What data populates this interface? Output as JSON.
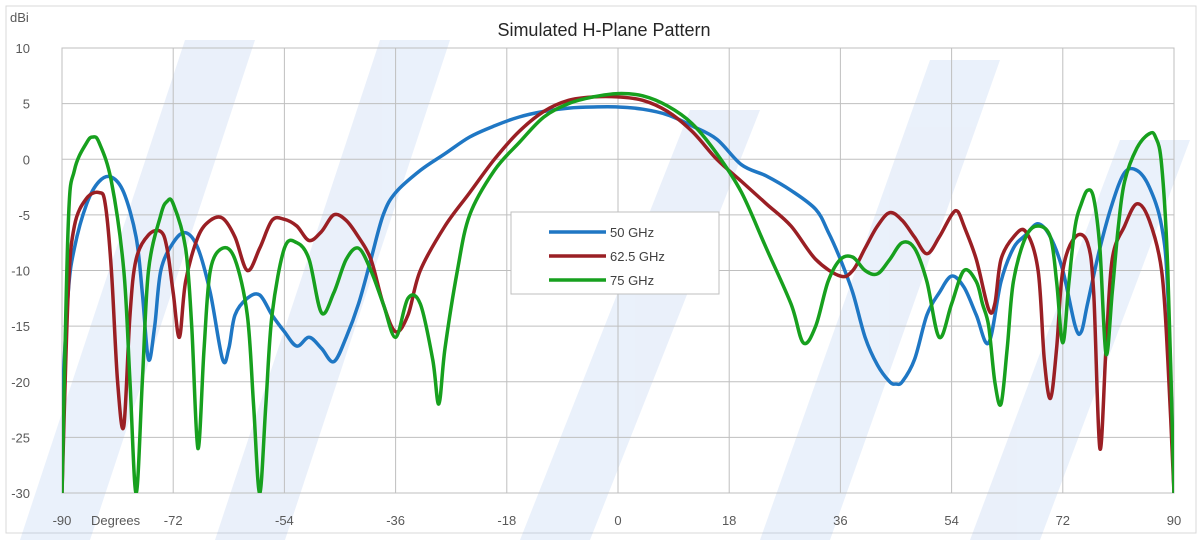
{
  "chart_data": {
    "type": "line",
    "title": "Simulated H-Plane Pattern",
    "ylabel": "dBi",
    "xlabel": "Degrees",
    "xlim": [
      -90,
      90
    ],
    "ylim": [
      -30,
      10
    ],
    "x_ticks": [
      -90,
      -72,
      -54,
      -36,
      -18,
      0,
      18,
      36,
      54,
      72,
      90
    ],
    "y_ticks": [
      10,
      5,
      0,
      -5,
      -10,
      -15,
      -20,
      -25,
      -30
    ],
    "grid": true,
    "legend_position": "center",
    "series": [
      {
        "name": "50 GHz",
        "color": "#1f77c4",
        "points": [
          [
            -90,
            -22
          ],
          [
            -89,
            -12
          ],
          [
            -88,
            -8
          ],
          [
            -86,
            -4
          ],
          [
            -84,
            -2
          ],
          [
            -82,
            -1.6
          ],
          [
            -80,
            -3
          ],
          [
            -78,
            -7
          ],
          [
            -77,
            -12
          ],
          [
            -76,
            -18
          ],
          [
            -75,
            -15
          ],
          [
            -74,
            -10
          ],
          [
            -72,
            -7.5
          ],
          [
            -70,
            -6.6
          ],
          [
            -68,
            -8
          ],
          [
            -66,
            -12
          ],
          [
            -64,
            -18
          ],
          [
            -63,
            -17
          ],
          [
            -62,
            -14
          ],
          [
            -60,
            -12.5
          ],
          [
            -58,
            -12.2
          ],
          [
            -56,
            -14
          ],
          [
            -54,
            -15.5
          ],
          [
            -52,
            -16.8
          ],
          [
            -50,
            -16
          ],
          [
            -48,
            -17
          ],
          [
            -46,
            -18.2
          ],
          [
            -44,
            -16
          ],
          [
            -42,
            -13
          ],
          [
            -40,
            -9
          ],
          [
            -38,
            -5
          ],
          [
            -36,
            -3
          ],
          [
            -32,
            -1
          ],
          [
            -28,
            0.5
          ],
          [
            -24,
            2
          ],
          [
            -20,
            3
          ],
          [
            -16,
            3.8
          ],
          [
            -12,
            4.3
          ],
          [
            -8,
            4.6
          ],
          [
            -4,
            4.7
          ],
          [
            0,
            4.7
          ],
          [
            4,
            4.5
          ],
          [
            8,
            4
          ],
          [
            12,
            3
          ],
          [
            16,
            1.8
          ],
          [
            20,
            -0.5
          ],
          [
            24,
            -1.5
          ],
          [
            28,
            -2.8
          ],
          [
            32,
            -4.5
          ],
          [
            34,
            -6.5
          ],
          [
            36,
            -9
          ],
          [
            38,
            -12
          ],
          [
            40,
            -16
          ],
          [
            42,
            -18.5
          ],
          [
            44,
            -20
          ],
          [
            45,
            -20.2
          ],
          [
            46,
            -20
          ],
          [
            48,
            -18
          ],
          [
            50,
            -14
          ],
          [
            52,
            -12
          ],
          [
            54,
            -10.5
          ],
          [
            56,
            -11.5
          ],
          [
            58,
            -14
          ],
          [
            60,
            -16.5
          ],
          [
            62,
            -11
          ],
          [
            64,
            -8
          ],
          [
            66,
            -6.8
          ],
          [
            68,
            -5.8
          ],
          [
            70,
            -7
          ],
          [
            72,
            -10
          ],
          [
            74,
            -15
          ],
          [
            75,
            -15.5
          ],
          [
            76,
            -13
          ],
          [
            78,
            -8
          ],
          [
            80,
            -4
          ],
          [
            82,
            -1.2
          ],
          [
            84,
            -1
          ],
          [
            86,
            -2.5
          ],
          [
            88,
            -6
          ],
          [
            89,
            -12
          ],
          [
            90,
            -30
          ]
        ]
      },
      {
        "name": "62.5 GHz",
        "color": "#9a1f24",
        "points": [
          [
            -90,
            -30
          ],
          [
            -89,
            -12
          ],
          [
            -88,
            -6
          ],
          [
            -86,
            -3.5
          ],
          [
            -84,
            -3
          ],
          [
            -83,
            -4
          ],
          [
            -82,
            -10
          ],
          [
            -81,
            -20
          ],
          [
            -80,
            -24
          ],
          [
            -79,
            -14
          ],
          [
            -78,
            -9
          ],
          [
            -76,
            -6.8
          ],
          [
            -74,
            -6.5
          ],
          [
            -73,
            -8
          ],
          [
            -72,
            -12
          ],
          [
            -71,
            -16
          ],
          [
            -70,
            -11
          ],
          [
            -68,
            -7
          ],
          [
            -66,
            -5.5
          ],
          [
            -64,
            -5.3
          ],
          [
            -62,
            -7
          ],
          [
            -60,
            -10
          ],
          [
            -58,
            -8
          ],
          [
            -56,
            -5.5
          ],
          [
            -54,
            -5.4
          ],
          [
            -52,
            -6
          ],
          [
            -50,
            -7.3
          ],
          [
            -48,
            -6.5
          ],
          [
            -46,
            -5
          ],
          [
            -44,
            -5.5
          ],
          [
            -42,
            -7
          ],
          [
            -40,
            -9
          ],
          [
            -38,
            -13
          ],
          [
            -36,
            -15.5
          ],
          [
            -34,
            -14
          ],
          [
            -32,
            -10
          ],
          [
            -28,
            -6
          ],
          [
            -24,
            -3
          ],
          [
            -20,
            0
          ],
          [
            -16,
            2.5
          ],
          [
            -12,
            4.3
          ],
          [
            -8,
            5.3
          ],
          [
            -4,
            5.6
          ],
          [
            0,
            5.6
          ],
          [
            4,
            5.3
          ],
          [
            8,
            4.3
          ],
          [
            12,
            2.5
          ],
          [
            16,
            0
          ],
          [
            20,
            -2
          ],
          [
            24,
            -4
          ],
          [
            28,
            -6
          ],
          [
            32,
            -9
          ],
          [
            36,
            -10.5
          ],
          [
            38,
            -10
          ],
          [
            40,
            -8
          ],
          [
            42,
            -6
          ],
          [
            44,
            -4.8
          ],
          [
            46,
            -5.5
          ],
          [
            48,
            -7
          ],
          [
            50,
            -8.5
          ],
          [
            52,
            -7
          ],
          [
            54,
            -5
          ],
          [
            55,
            -4.7
          ],
          [
            56,
            -6
          ],
          [
            58,
            -9
          ],
          [
            60,
            -13.5
          ],
          [
            61,
            -13
          ],
          [
            62,
            -9
          ],
          [
            64,
            -7
          ],
          [
            66,
            -6.5
          ],
          [
            68,
            -10
          ],
          [
            69,
            -18
          ],
          [
            70,
            -21.5
          ],
          [
            71,
            -17
          ],
          [
            72,
            -10
          ],
          [
            74,
            -7
          ],
          [
            76,
            -7.5
          ],
          [
            77,
            -12
          ],
          [
            78,
            -26
          ],
          [
            79,
            -17
          ],
          [
            80,
            -9
          ],
          [
            82,
            -6
          ],
          [
            84,
            -4
          ],
          [
            86,
            -5.5
          ],
          [
            88,
            -10
          ],
          [
            89,
            -18
          ],
          [
            90,
            -30
          ]
        ]
      },
      {
        "name": "75 GHz",
        "color": "#17a01e",
        "points": [
          [
            -90,
            -30
          ],
          [
            -89,
            -6
          ],
          [
            -88,
            -1
          ],
          [
            -86,
            1.5
          ],
          [
            -85,
            2
          ],
          [
            -84,
            1.5
          ],
          [
            -82,
            -2
          ],
          [
            -80,
            -10
          ],
          [
            -79,
            -20
          ],
          [
            -78,
            -30
          ],
          [
            -77,
            -20
          ],
          [
            -76,
            -10
          ],
          [
            -74,
            -5
          ],
          [
            -73,
            -3.8
          ],
          [
            -72,
            -4
          ],
          [
            -70,
            -8
          ],
          [
            -69,
            -15
          ],
          [
            -68,
            -26
          ],
          [
            -67,
            -17
          ],
          [
            -66,
            -10
          ],
          [
            -64,
            -8
          ],
          [
            -62,
            -9
          ],
          [
            -60,
            -14
          ],
          [
            -59,
            -22
          ],
          [
            -58,
            -30
          ],
          [
            -57,
            -22
          ],
          [
            -56,
            -14
          ],
          [
            -54,
            -8
          ],
          [
            -52,
            -7.5
          ],
          [
            -50,
            -9
          ],
          [
            -48,
            -13.8
          ],
          [
            -46,
            -12
          ],
          [
            -44,
            -9
          ],
          [
            -42,
            -8
          ],
          [
            -40,
            -10
          ],
          [
            -38,
            -13
          ],
          [
            -36,
            -16
          ],
          [
            -34,
            -12.5
          ],
          [
            -32,
            -13
          ],
          [
            -30,
            -18
          ],
          [
            -29,
            -22
          ],
          [
            -28,
            -17
          ],
          [
            -26,
            -10
          ],
          [
            -24,
            -5
          ],
          [
            -20,
            -1
          ],
          [
            -16,
            1.5
          ],
          [
            -12,
            3.8
          ],
          [
            -8,
            5
          ],
          [
            -4,
            5.6
          ],
          [
            0,
            5.9
          ],
          [
            4,
            5.7
          ],
          [
            8,
            4.8
          ],
          [
            12,
            3.2
          ],
          [
            16,
            0.5
          ],
          [
            20,
            -3
          ],
          [
            24,
            -8
          ],
          [
            28,
            -13
          ],
          [
            30,
            -16.5
          ],
          [
            32,
            -15
          ],
          [
            34,
            -11
          ],
          [
            36,
            -9
          ],
          [
            38,
            -8.8
          ],
          [
            40,
            -10
          ],
          [
            42,
            -10.3
          ],
          [
            44,
            -9
          ],
          [
            46,
            -7.5
          ],
          [
            48,
            -8
          ],
          [
            50,
            -11
          ],
          [
            52,
            -16
          ],
          [
            54,
            -13
          ],
          [
            56,
            -10
          ],
          [
            58,
            -11
          ],
          [
            59,
            -13
          ],
          [
            60,
            -15
          ],
          [
            61,
            -20
          ],
          [
            62,
            -22
          ],
          [
            63,
            -17
          ],
          [
            64,
            -11
          ],
          [
            66,
            -7
          ],
          [
            68,
            -6
          ],
          [
            70,
            -7
          ],
          [
            71,
            -11
          ],
          [
            72,
            -16.5
          ],
          [
            73,
            -11
          ],
          [
            74,
            -6
          ],
          [
            75,
            -4
          ],
          [
            76,
            -2.8
          ],
          [
            77,
            -3.5
          ],
          [
            78,
            -8
          ],
          [
            79,
            -17.5
          ],
          [
            80,
            -12
          ],
          [
            81,
            -6
          ],
          [
            82,
            -2
          ],
          [
            84,
            1
          ],
          [
            86,
            2.3
          ],
          [
            87,
            2
          ],
          [
            88,
            -0.5
          ],
          [
            89,
            -10
          ],
          [
            90,
            -30
          ]
        ]
      }
    ]
  }
}
